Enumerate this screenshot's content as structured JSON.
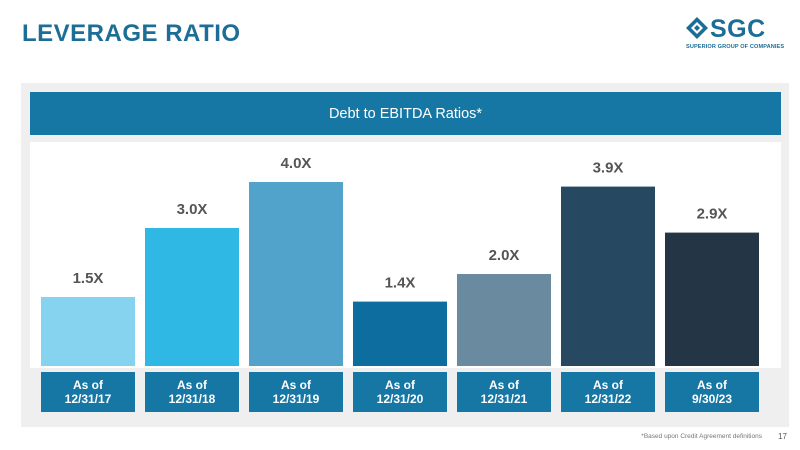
{
  "page": {
    "title": "LEVERAGE RATIO",
    "footnote": "*Based upon Credit Agreement definitions",
    "page_number": "17"
  },
  "logo": {
    "name": "SGC",
    "tagline": "SUPERIOR GROUP OF COMPANIES",
    "color": "#1d6e96"
  },
  "chart_data": {
    "type": "bar",
    "title": "Debt to EBITDA Ratios*",
    "categories": [
      [
        "As of",
        "12/31/17"
      ],
      [
        "As of",
        "12/31/18"
      ],
      [
        "As of",
        "12/31/19"
      ],
      [
        "As of",
        "12/31/20"
      ],
      [
        "As of",
        "12/31/21"
      ],
      [
        "As of",
        "12/31/22"
      ],
      [
        "As of",
        "9/30/23"
      ]
    ],
    "values": [
      1.5,
      3.0,
      4.0,
      1.4,
      2.0,
      3.9,
      2.9
    ],
    "data_labels": [
      "1.5X",
      "3.0X",
      "4.0X",
      "1.4X",
      "2.0X",
      "3.9X",
      "2.9X"
    ],
    "colors": [
      "#86d3ef",
      "#2fb8e3",
      "#51a3cc",
      "#0e6d9f",
      "#6a8aa0",
      "#274861",
      "#243646"
    ],
    "ylim": [
      0,
      4
    ],
    "xlabel": "",
    "ylabel": "",
    "grid": false
  }
}
